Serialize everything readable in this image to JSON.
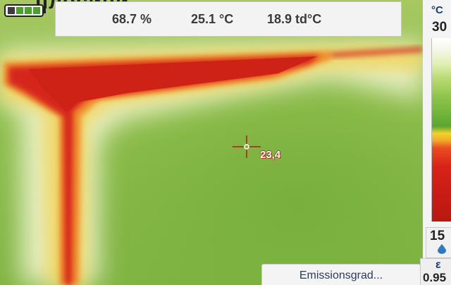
{
  "header": {
    "partial_title": "плосини",
    "humidity": "68.7 %",
    "temperature": "25.1 °C",
    "dew_point": "18.9 td°C"
  },
  "battery": {
    "icon": "battery-icon",
    "level_fraction": 0.8
  },
  "measurement": {
    "spot_temperature": "23,4",
    "crosshair_icon": "crosshair-icon"
  },
  "scale": {
    "unit": "°C",
    "max": "30",
    "min": "15",
    "drop_icon": "water-drop-icon",
    "colors": [
      "#ffffff",
      "#b9da73",
      "#6fb33a",
      "#f2d32a",
      "#ea4c23",
      "#c81b16"
    ]
  },
  "emissivity": {
    "symbol": "ε",
    "value": "0.95",
    "button_label": "Emissionsgrad..."
  }
}
